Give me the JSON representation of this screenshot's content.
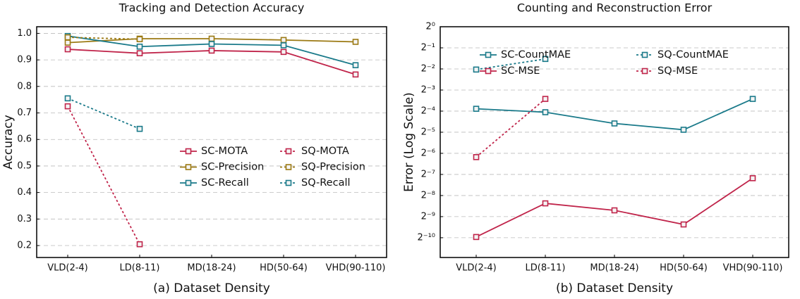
{
  "chart_data": [
    {
      "type": "line",
      "title": "Tracking and Detection Accuracy",
      "xlabel": "(a) Dataset Density",
      "ylabel": "Accuracy",
      "categories": [
        "VLD(2-4)",
        "LD(8-11)",
        "MD(18-24)",
        "HD(50-64)",
        "VHD(90-110)"
      ],
      "ylim": [
        0.155,
        1.025
      ],
      "yticks": [
        0.2,
        0.3,
        0.4,
        0.5,
        0.6,
        0.7,
        0.8,
        0.9,
        {
          "value": 1,
          "label": "1.0"
        }
      ],
      "grid": true,
      "legend": "center right",
      "series": [
        {
          "name": "SC-MOTA",
          "color": "#c0244a",
          "dashed": false,
          "values": [
            0.94,
            0.925,
            0.935,
            0.93,
            0.845
          ]
        },
        {
          "name": "SC-Precision",
          "color": "#9c7a14",
          "dashed": false,
          "values": [
            0.965,
            0.98,
            0.98,
            0.975,
            0.968
          ]
        },
        {
          "name": "SC-Recall",
          "color": "#1a7a8a",
          "dashed": false,
          "values": [
            0.99,
            0.95,
            0.96,
            0.955,
            0.88
          ]
        },
        {
          "name": "SQ-MOTA",
          "color": "#c0244a",
          "dashed": true,
          "values": [
            0.725,
            0.205,
            null,
            null,
            null
          ]
        },
        {
          "name": "SQ-Precision",
          "color": "#9c7a14",
          "dashed": true,
          "values": [
            0.985,
            0.978,
            null,
            null,
            null
          ]
        },
        {
          "name": "SQ-Recall",
          "color": "#1a7a8a",
          "dashed": true,
          "values": [
            0.755,
            0.64,
            null,
            null,
            null
          ]
        }
      ]
    },
    {
      "type": "line",
      "title": "Counting and Reconstruction Error",
      "xlabel": "(b) Dataset Density",
      "ylabel": "Error (Log Scale)",
      "categories": [
        "VLD(2-4)",
        "LD(8-11)",
        "MD(18-24)",
        "HD(50-64)",
        "VHD(90-110)"
      ],
      "yscale": "log",
      "ylim": [
        0.00051,
        1
      ],
      "yticks": [
        {
          "value": 1,
          "label": "2⁰"
        },
        {
          "value": 0.5,
          "label": "2⁻¹"
        },
        {
          "value": 0.25,
          "label": "2⁻²"
        },
        {
          "value": 0.125,
          "label": "2⁻³"
        },
        {
          "value": 0.0625,
          "label": "2⁻⁴"
        },
        {
          "value": 0.03125,
          "label": "2⁻⁵"
        },
        {
          "value": 0.015625,
          "label": "2⁻⁶"
        },
        {
          "value": 0.0078125,
          "label": "2⁻⁷"
        },
        {
          "value": 0.00390625,
          "label": "2⁻⁸"
        },
        {
          "value": 0.001953125,
          "label": "2⁻⁹"
        },
        {
          "value": 0.0009765625,
          "label": "2⁻¹⁰"
        }
      ],
      "grid": true,
      "legend": "upper right",
      "series": [
        {
          "name": "SC-CountMAE",
          "color": "#1a7a8a",
          "dashed": false,
          "values": [
            0.0675,
            0.0603,
            0.0417,
            0.0339,
            0.0934
          ]
        },
        {
          "name": "SC-MSE",
          "color": "#c0244a",
          "dashed": false,
          "values": [
            0.001,
            0.00302,
            0.0024,
            0.00151,
            0.0069
          ]
        },
        {
          "name": "SQ-CountMAE",
          "color": "#1a7a8a",
          "dashed": true,
          "values": [
            0.245,
            0.347,
            null,
            null,
            null
          ]
        },
        {
          "name": "SQ-MSE",
          "color": "#c0244a",
          "dashed": true,
          "values": [
            0.0138,
            0.0934,
            null,
            null,
            null
          ]
        }
      ]
    }
  ]
}
